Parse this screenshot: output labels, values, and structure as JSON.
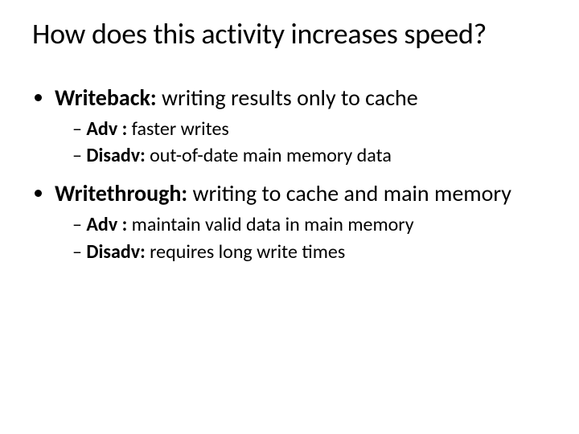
{
  "title": "How does this activity increases speed?",
  "bullets": [
    {
      "label": "Writeback:",
      "text": " writing results only to cache",
      "sub": [
        {
          "label": "Adv :",
          "text": " faster writes"
        },
        {
          "label": "Disadv:",
          "text": " out-of-date main memory data"
        }
      ]
    },
    {
      "label": "Writethrough:",
      "text": "  writing to cache and main memory",
      "sub": [
        {
          "label": "Adv :",
          "text": " maintain valid data in main memory"
        },
        {
          "label": "Disadv:",
          "text": " requires long write times"
        }
      ]
    }
  ],
  "style": {
    "background_color": "#ffffff",
    "text_color": "#000000",
    "title_fontsize": 36,
    "level1_fontsize": 28,
    "level2_fontsize": 24,
    "font_family": "Calibri"
  }
}
